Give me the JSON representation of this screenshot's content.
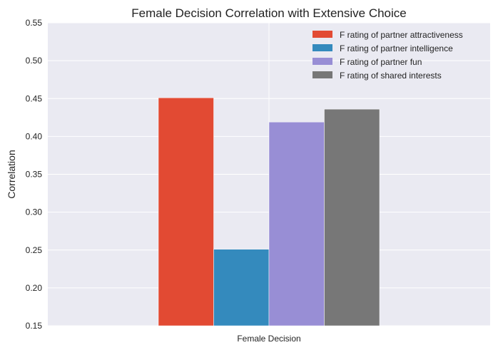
{
  "chart_data": {
    "type": "bar",
    "title": "Female Decision Correlation with Extensive Choice",
    "xlabel": "",
    "ylabel": "Correlation",
    "categories": [
      "Female Decision"
    ],
    "series": [
      {
        "name": "F rating of partner attractiveness",
        "values": [
          0.451
        ],
        "color": "#E24A33"
      },
      {
        "name": "F rating of partner intelligence",
        "values": [
          0.251
        ],
        "color": "#348ABD"
      },
      {
        "name": "F rating of partner fun",
        "values": [
          0.419
        ],
        "color": "#988ED5"
      },
      {
        "name": "F rating of shared interests",
        "values": [
          0.436
        ],
        "color": "#777777"
      }
    ],
    "ylim": [
      0.15,
      0.55
    ],
    "yticks": [
      "0.15",
      "0.20",
      "0.25",
      "0.30",
      "0.35",
      "0.40",
      "0.45",
      "0.50",
      "0.55"
    ],
    "grid": true,
    "legend_position": "top-right",
    "background_color": "#EAEAF2",
    "grid_color": "#FFFFFF"
  }
}
